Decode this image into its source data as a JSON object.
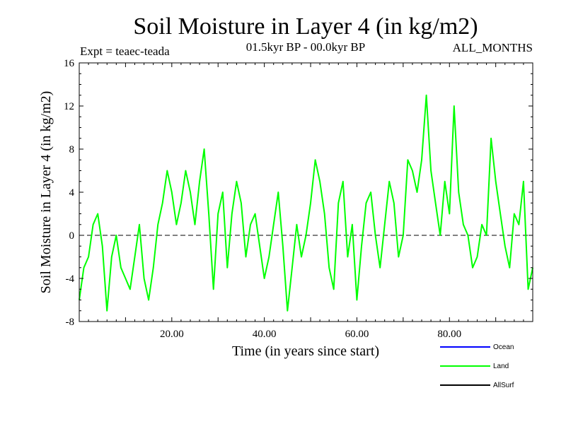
{
  "chart_data": {
    "type": "line",
    "title": "Soil Moisture in Layer 4 (in kg/m2)",
    "subtitle_left": "Expt = teaec-teada",
    "subtitle_center": "01.5kyr BP - 00.0kyr BP",
    "subtitle_right": "ALL_MONTHS",
    "xlabel": "Time (in years since start)",
    "ylabel": "Soil Moisture in Layer 4 (in kg/m2)",
    "xlim": [
      0,
      98
    ],
    "ylim": [
      -8,
      16
    ],
    "x_ticks": [
      20,
      40,
      60,
      80
    ],
    "x_tick_labels": [
      "20.00",
      "40.00",
      "60.00",
      "80.00"
    ],
    "y_ticks": [
      -8,
      -4,
      0,
      4,
      8,
      12,
      16
    ],
    "y_tick_labels": [
      "-8",
      "-4",
      "0",
      "4",
      "8",
      "12",
      "16"
    ],
    "zero_line": 0,
    "legend": {
      "placement": "bottom-right",
      "entries": [
        {
          "name": "Ocean",
          "color": "#0000ff"
        },
        {
          "name": "Land",
          "color": "#00ff00"
        },
        {
          "name": "AllSurf",
          "color": "#000000"
        }
      ]
    },
    "series": [
      {
        "name": "Land",
        "color": "#00ff00",
        "x": [
          0,
          1,
          2,
          3,
          4,
          5,
          6,
          7,
          8,
          9,
          10,
          11,
          12,
          13,
          14,
          15,
          16,
          17,
          18,
          19,
          20,
          21,
          22,
          23,
          24,
          25,
          26,
          27,
          28,
          29,
          30,
          31,
          32,
          33,
          34,
          35,
          36,
          37,
          38,
          39,
          40,
          41,
          42,
          43,
          44,
          45,
          46,
          47,
          48,
          49,
          50,
          51,
          52,
          53,
          54,
          55,
          56,
          57,
          58,
          59,
          60,
          61,
          62,
          63,
          64,
          65,
          66,
          67,
          68,
          69,
          70,
          71,
          72,
          73,
          74,
          75,
          76,
          77,
          78,
          79,
          80,
          81,
          82,
          83,
          84,
          85,
          86,
          87,
          88,
          89,
          90,
          91,
          92,
          93,
          94,
          95,
          96,
          97,
          98
        ],
        "values": [
          -6,
          -3,
          -2,
          1,
          2,
          -1,
          -7,
          -2,
          0,
          -3,
          -4,
          -5,
          -2,
          1,
          -4,
          -6,
          -3,
          1,
          3,
          6,
          4,
          1,
          3,
          6,
          4,
          1,
          5,
          8,
          2,
          -5,
          2,
          4,
          -3,
          2,
          5,
          3,
          -2,
          1,
          2,
          -1,
          -4,
          -2,
          1,
          4,
          -1,
          -7,
          -3,
          1,
          -2,
          0,
          3,
          7,
          5,
          2,
          -3,
          -5,
          3,
          5,
          -2,
          1,
          -6,
          -1,
          3,
          4,
          0,
          -3,
          1,
          5,
          3,
          -2,
          0,
          7,
          6,
          4,
          7,
          13,
          6,
          3,
          0,
          5,
          2,
          12,
          4,
          1,
          0,
          -3,
          -2,
          1,
          0,
          9,
          5,
          2,
          -1,
          -3,
          2,
          1,
          5,
          -5,
          -3
        ]
      }
    ]
  }
}
